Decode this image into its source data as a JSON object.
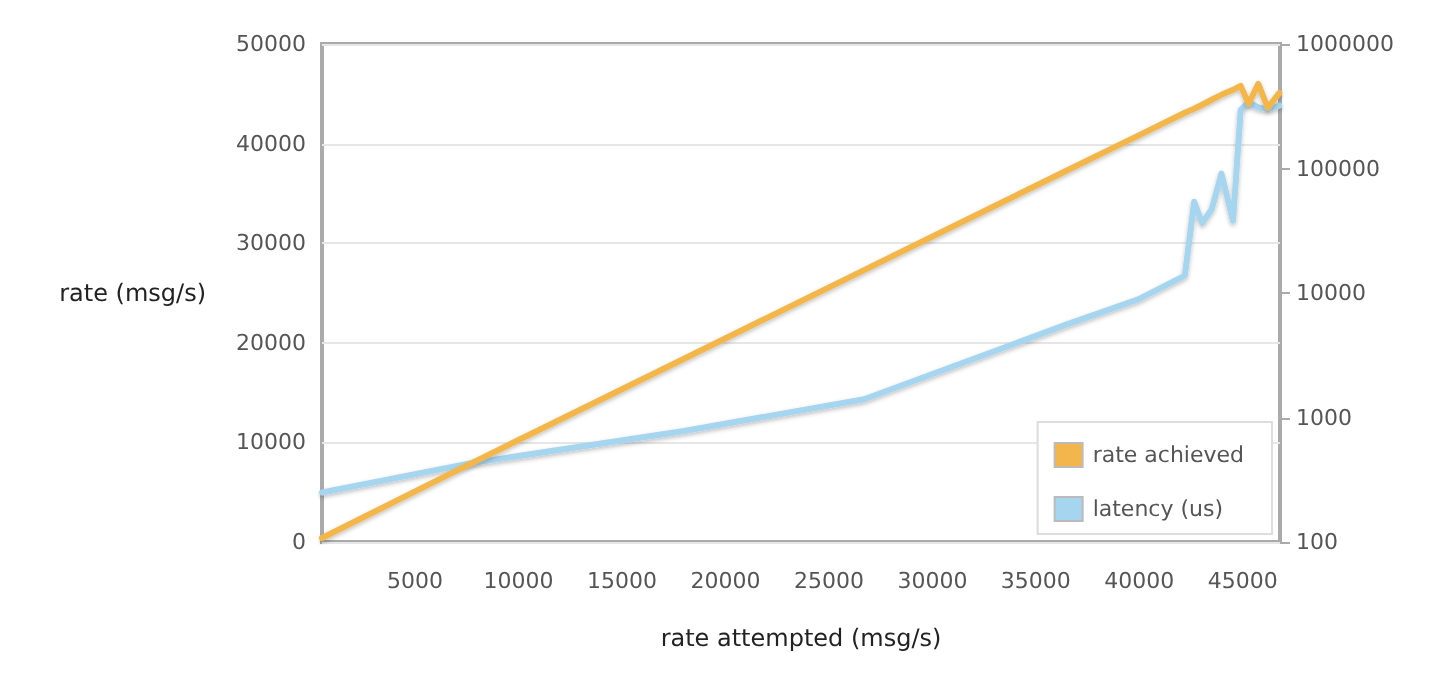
{
  "chart_data": {
    "type": "line",
    "xlabel": "rate attempted (msg/s)",
    "ylabel": "rate (msg/s)",
    "x": [
      500,
      7710,
      18000,
      26700,
      36500,
      39950,
      42200,
      42650,
      43040,
      43500,
      43970,
      44530,
      44900,
      45280,
      45750,
      46210,
      46770
    ],
    "series": [
      {
        "name": "rate achieved",
        "color": "#f2b64c",
        "values": [
          400,
          7900,
          18400,
          27300,
          37300,
          40800,
          43100,
          43500,
          43900,
          44400,
          44900,
          45400,
          45800,
          44000,
          46000,
          43600,
          45100
        ]
      },
      {
        "name": "latency (us)",
        "color": "#a6d5ef",
        "axis": "y2",
        "values": [
          250,
          430,
          780,
          1400,
          5600,
          8900,
          13800,
          54000,
          36500,
          47000,
          91000,
          38000,
          295000,
          340000,
          310000,
          300000,
          320000
        ]
      }
    ],
    "xlim": [
      500,
      46800
    ],
    "xticks": [
      5000,
      10000,
      15000,
      20000,
      25000,
      30000,
      35000,
      40000,
      45000
    ],
    "ylim": [
      0,
      50000
    ],
    "yticks": [
      0,
      10000,
      20000,
      30000,
      40000,
      50000
    ],
    "y2lim": [
      100,
      1000000
    ],
    "y2ticks": [
      100,
      1000,
      10000,
      100000,
      1000000
    ],
    "log": "y2",
    "grid": "y",
    "legend": "bottom right",
    "marker": "none",
    "line_style": "solid"
  }
}
